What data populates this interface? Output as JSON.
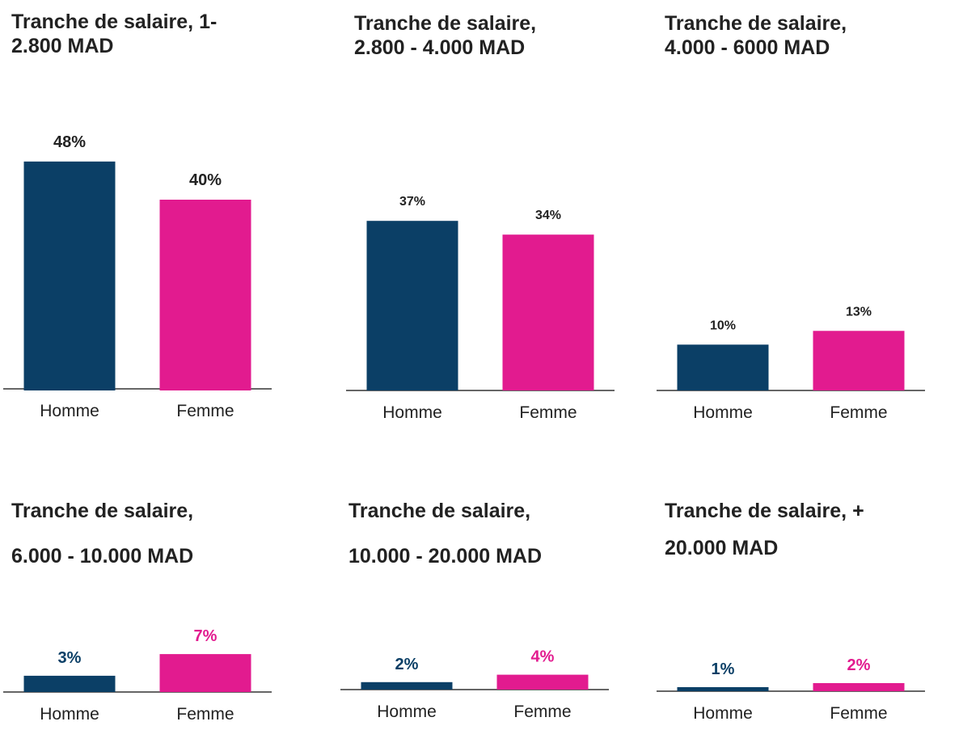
{
  "colors": {
    "homme": "#0b3f66",
    "femme": "#e21b8f",
    "axis": "#333333",
    "text": "#222222"
  },
  "chart_data": [
    {
      "type": "bar",
      "title": [
        "Tranche de salaire, 1-",
        "2.800 MAD"
      ],
      "categories": [
        "Homme",
        "Femme"
      ],
      "values": [
        48,
        40
      ],
      "labels": [
        "48%",
        "40%"
      ],
      "ylim": [
        0,
        50
      ]
    },
    {
      "type": "bar",
      "title": [
        "Tranche de salaire,",
        "2.800 - 4.000 MAD"
      ],
      "categories": [
        "Homme",
        "Femme"
      ],
      "values": [
        37,
        34
      ],
      "labels": [
        "37%",
        "34%"
      ],
      "ylim": [
        0,
        50
      ]
    },
    {
      "type": "bar",
      "title": [
        "Tranche de salaire,",
        "4.000 - 6000 MAD"
      ],
      "categories": [
        "Homme",
        "Femme"
      ],
      "values": [
        10,
        13
      ],
      "labels": [
        "10%",
        "13%"
      ],
      "ylim": [
        0,
        50
      ]
    },
    {
      "type": "bar",
      "title": [
        "Tranche de salaire,",
        "6.000 - 10.000 MAD"
      ],
      "categories": [
        "Homme",
        "Femme"
      ],
      "values": [
        3,
        7
      ],
      "labels": [
        "3%",
        "7%"
      ],
      "ylim": [
        0,
        50
      ]
    },
    {
      "type": "bar",
      "title": [
        "Tranche de salaire,",
        "10.000 - 20.000 MAD"
      ],
      "categories": [
        "Homme",
        "Femme"
      ],
      "values": [
        2,
        4
      ],
      "labels": [
        "2%",
        "4%"
      ],
      "ylim": [
        0,
        50
      ]
    },
    {
      "type": "bar",
      "title": [
        "Tranche de salaire, +",
        "20.000 MAD"
      ],
      "categories": [
        "Homme",
        "Femme"
      ],
      "values": [
        1,
        2
      ],
      "labels": [
        "1%",
        "2%"
      ],
      "ylim": [
        0,
        50
      ]
    }
  ]
}
